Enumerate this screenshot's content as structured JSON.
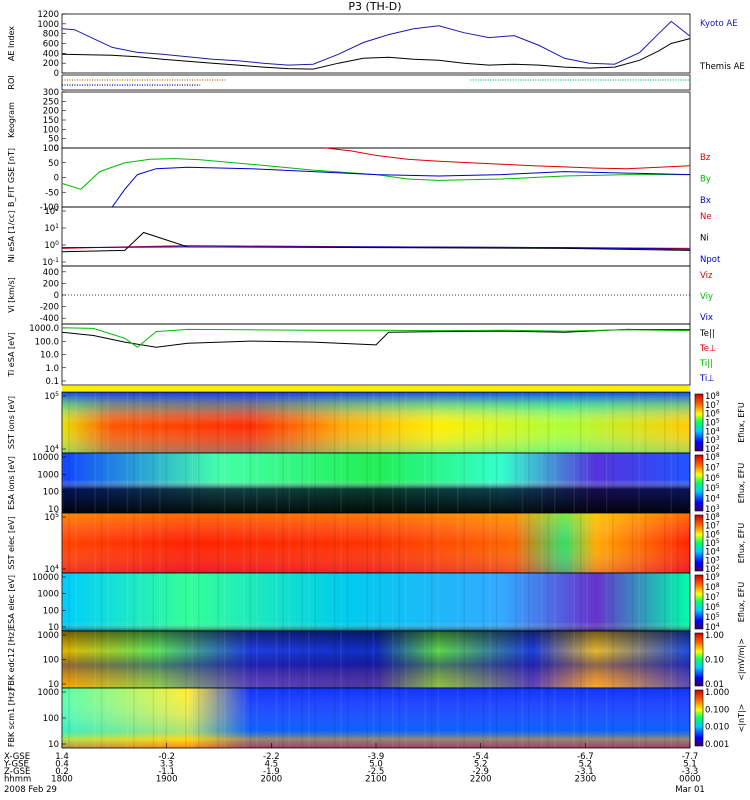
{
  "title": "P3 (TH-D)",
  "footer_date_left": "2008 Feb 29",
  "footer_date_right": "Mar 01",
  "chart_data": [
    {
      "type": "line",
      "ylabel": "AE Index",
      "ylim": [
        0,
        1200
      ],
      "yticks": [
        "0",
        "200",
        "400",
        "600",
        "800",
        "1000",
        "1200"
      ],
      "series": [
        {
          "name": "Kyoto AE",
          "color": "#1a1aaa",
          "x": [
            0,
            0.02,
            0.05,
            0.08,
            0.12,
            0.16,
            0.2,
            0.24,
            0.28,
            0.32,
            0.36,
            0.4,
            0.44,
            0.48,
            0.52,
            0.56,
            0.6,
            0.64,
            0.68,
            0.72,
            0.76,
            0.8,
            0.84,
            0.88,
            0.92,
            0.95,
            0.97,
            1.0
          ],
          "y": [
            900,
            880,
            700,
            520,
            420,
            380,
            330,
            280,
            250,
            200,
            160,
            180,
            380,
            620,
            780,
            900,
            960,
            820,
            720,
            760,
            560,
            300,
            200,
            180,
            420,
            800,
            1050,
            750
          ]
        },
        {
          "name": "Themis AE",
          "color": "#000000",
          "x": [
            0,
            0.04,
            0.08,
            0.12,
            0.16,
            0.2,
            0.24,
            0.28,
            0.32,
            0.36,
            0.4,
            0.44,
            0.48,
            0.52,
            0.56,
            0.6,
            0.64,
            0.68,
            0.72,
            0.76,
            0.8,
            0.84,
            0.88,
            0.92,
            0.95,
            0.97,
            1.0
          ],
          "y": [
            380,
            370,
            360,
            330,
            280,
            240,
            200,
            160,
            120,
            90,
            80,
            200,
            300,
            320,
            280,
            260,
            200,
            160,
            180,
            160,
            120,
            100,
            120,
            260,
            450,
            600,
            700
          ]
        }
      ]
    },
    {
      "type": "line",
      "ylabel": "ROI",
      "series": [
        {
          "name": "",
          "color": "#cc6600",
          "x": [
            0,
            0.26
          ],
          "y": [
            2,
            2
          ]
        },
        {
          "name": "",
          "color": "#000088",
          "x": [
            0,
            0.22
          ],
          "y": [
            1,
            1
          ]
        },
        {
          "name": "",
          "color": "#00cc66",
          "x": [
            0.65,
            1.0
          ],
          "y": [
            2,
            2
          ]
        }
      ]
    },
    {
      "type": "line",
      "ylabel": "Keogram",
      "ylim": [
        0,
        300
      ],
      "yticks": [
        "0",
        "50",
        "100",
        "150",
        "200",
        "250",
        "300"
      ],
      "series": []
    },
    {
      "type": "line",
      "ylabel": "B_FIT GSE [nT]",
      "ylim": [
        -100,
        100
      ],
      "yticks": [
        "-100",
        "-50",
        "0",
        "50",
        "100"
      ],
      "series": [
        {
          "name": "Bz",
          "color": "#dd0000",
          "x": [
            0.42,
            0.46,
            0.5,
            0.55,
            0.6,
            0.65,
            0.7,
            0.75,
            0.8,
            0.85,
            0.9,
            0.95,
            1.0
          ],
          "y": [
            100,
            90,
            75,
            62,
            55,
            50,
            45,
            40,
            36,
            32,
            30,
            35,
            40
          ]
        },
        {
          "name": "By",
          "color": "#00bb00",
          "x": [
            0.0,
            0.03,
            0.06,
            0.1,
            0.14,
            0.18,
            0.22,
            0.3,
            0.4,
            0.5,
            0.55,
            0.6,
            0.7,
            0.8,
            0.9,
            1.0
          ],
          "y": [
            -20,
            -40,
            20,
            50,
            62,
            64,
            60,
            45,
            25,
            10,
            -5,
            -10,
            -5,
            5,
            10,
            10
          ]
        },
        {
          "name": "Bx",
          "color": "#0000cc",
          "x": [
            0.08,
            0.1,
            0.12,
            0.15,
            0.2,
            0.3,
            0.4,
            0.5,
            0.6,
            0.7,
            0.8,
            0.9,
            1.0
          ],
          "y": [
            -100,
            -40,
            10,
            30,
            35,
            30,
            20,
            10,
            5,
            10,
            20,
            15,
            10
          ]
        }
      ]
    },
    {
      "type": "line",
      "ylabel": "Ni eSA [1/cc]",
      "yticks": [
        "10^-1",
        "10^0",
        "10^1",
        "10^2"
      ],
      "series": [
        {
          "name": "Ne",
          "color": "#dd0000",
          "x": [
            0,
            0.1,
            0.2,
            0.5,
            0.8,
            1.0
          ],
          "y": [
            0.8,
            1.0,
            1.2,
            1.0,
            0.9,
            0.8
          ]
        },
        {
          "name": "Ni",
          "color": "#000000",
          "x": [
            0,
            0.1,
            0.13,
            0.2,
            0.5,
            0.8,
            1.0
          ],
          "y": [
            0.5,
            0.6,
            8,
            1.0,
            0.9,
            0.8,
            0.6
          ]
        },
        {
          "name": "Npot",
          "color": "#0000cc",
          "x": [
            0,
            0.2,
            0.5,
            0.8,
            1.0
          ],
          "y": [
            0.9,
            1.0,
            1.0,
            0.9,
            0.7
          ]
        }
      ]
    },
    {
      "type": "line",
      "ylabel": "Vi [km/s]",
      "ylim": [
        -500,
        500
      ],
      "yticks": [
        "-400",
        "-200",
        "0",
        "200",
        "400"
      ],
      "series": [
        {
          "name": "Viz",
          "color": "#dd0000",
          "x": [],
          "y": []
        },
        {
          "name": "Viy",
          "color": "#00bb00",
          "x": [],
          "y": []
        },
        {
          "name": "Vix",
          "color": "#0000cc",
          "x": [],
          "y": []
        }
      ]
    },
    {
      "type": "line",
      "ylabel": "Ti eSA [eV]",
      "yticks": [
        "0.1",
        "1.0",
        "10.0",
        "100.0",
        "1000.0"
      ],
      "series": [
        {
          "name": "Te||",
          "color": "#000000",
          "x": [
            0,
            0.05,
            0.1,
            0.15,
            0.2,
            0.3,
            0.4,
            0.5,
            0.52,
            0.6,
            0.7,
            0.8,
            0.9,
            1.0
          ],
          "y": [
            900,
            500,
            150,
            60,
            120,
            180,
            150,
            90,
            900,
            1000,
            1100,
            900,
            1500,
            1400
          ]
        },
        {
          "name": "Te⊥",
          "color": "#dd0000",
          "x": [],
          "y": []
        },
        {
          "name": "Ti||",
          "color": "#00bb00",
          "x": [
            0,
            0.05,
            0.1,
            0.12,
            0.15,
            0.2,
            0.3,
            0.4,
            0.5,
            0.6,
            0.7,
            0.8,
            0.9,
            1.0
          ],
          "y": [
            2000,
            1800,
            300,
            60,
            1000,
            1500,
            1400,
            1300,
            1300,
            1200,
            1300,
            1100,
            1400,
            1200
          ]
        },
        {
          "name": "Ti⊥",
          "color": "#0000cc",
          "x": [],
          "y": []
        }
      ]
    },
    {
      "type": "heatmap",
      "ylabel": "SST ions [eV]",
      "yticks": [
        "10^4",
        "10^5"
      ],
      "colorbar_label": "Eflux, EFU",
      "colorbar_ticks": [
        "10^2",
        "10^3",
        "10^4",
        "10^5",
        "10^6",
        "10^7",
        "10^8"
      ]
    },
    {
      "type": "heatmap",
      "ylabel": "ESA ions [eV]",
      "yticks": [
        "10",
        "100",
        "1000",
        "10000"
      ],
      "colorbar_label": "Eflux, EFU",
      "colorbar_ticks": [
        "10^3",
        "10^4",
        "10^5",
        "10^6",
        "10^7",
        "10^8"
      ]
    },
    {
      "type": "heatmap",
      "ylabel": "SST elec [eV]",
      "yticks": [
        "10^4",
        "10^5"
      ],
      "colorbar_label": "Eflux, EFU",
      "colorbar_ticks": [
        "10^2",
        "10^3",
        "10^4",
        "10^5",
        "10^6",
        "10^7",
        "10^8"
      ]
    },
    {
      "type": "heatmap",
      "ylabel": "ESA elec [eV]",
      "yticks": [
        "10",
        "100",
        "1000",
        "10000"
      ],
      "colorbar_label": "Eflux, EFU",
      "colorbar_ticks": [
        "10^4",
        "10^5",
        "10^6",
        "10^7",
        "10^8",
        "10^9"
      ]
    },
    {
      "type": "heatmap",
      "ylabel": "FBK edc12 [Hz]",
      "yticks": [
        "10",
        "100",
        "1000"
      ],
      "colorbar_label": "<|mV/m|>",
      "colorbar_ticks": [
        "0.01",
        "0.10",
        "1.00"
      ]
    },
    {
      "type": "heatmap",
      "ylabel": "FBK scm1 [Hz]",
      "yticks": [
        "10",
        "100",
        "1000"
      ],
      "colorbar_label": "<|nT|>",
      "colorbar_ticks": [
        "0.001",
        "0.010",
        "0.100",
        "1.000"
      ]
    }
  ],
  "time_axis": {
    "row_labels": [
      "X-GSE",
      "Y-GSE",
      "Z-GSE",
      "hhmm"
    ],
    "columns": [
      [
        "1.4",
        "-0.2",
        "-2.2",
        "-3.9",
        "-5.4",
        "-6.7",
        "-7.7"
      ],
      [
        "0.4",
        "3.3",
        "4.5",
        "5.0",
        "5.2",
        "5.2",
        "5.1"
      ],
      [
        "0.2",
        "-1.1",
        "-1.9",
        "-2.5",
        "-2.9",
        "-3.1",
        "-3.3"
      ],
      [
        "1800",
        "1900",
        "2000",
        "2100",
        "2200",
        "2300",
        "0000"
      ]
    ]
  }
}
